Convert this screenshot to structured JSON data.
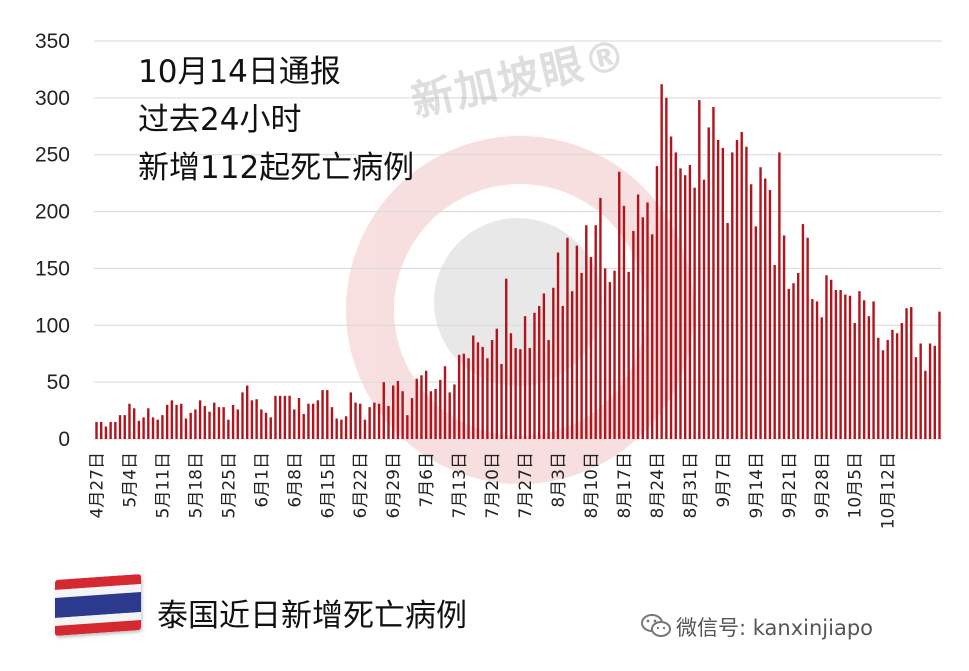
{
  "annotation": {
    "line1": "10月14日通报",
    "line2": "过去24小时",
    "line3": "新增112起死亡病例"
  },
  "legend": {
    "label": "泰国近日新增死亡病例",
    "icon": "thailand-flag-icon"
  },
  "watermark": {
    "text": "新加坡眼®",
    "icon": "logo-watermark"
  },
  "credit": {
    "text": "微信号: kanxinjiapo",
    "icon": "wechat-icon"
  },
  "colors": {
    "bar": "#b5131b",
    "grid": "#d9d9d9",
    "watermark": "#e8a0a4"
  },
  "chart_data": {
    "type": "bar",
    "ylim": [
      0,
      350
    ],
    "yticks": [
      0,
      50,
      100,
      150,
      200,
      250,
      300,
      350
    ],
    "grid": true,
    "x_start": "4月27日",
    "x_end": "10月14日",
    "xtick_labels": [
      "4月27日",
      "5月4日",
      "5月11日",
      "5月18日",
      "5月25日",
      "6月1日",
      "6月8日",
      "6月15日",
      "6月22日",
      "6月29日",
      "7月6日",
      "7月13日",
      "7月20日",
      "7月27日",
      "8月3日",
      "8月10日",
      "8月17日",
      "8月24日",
      "8月31日",
      "9月7日",
      "9月14日",
      "9月21日",
      "9月28日",
      "10月5日",
      "10月12日"
    ],
    "values": [
      15,
      15,
      11,
      15,
      15,
      21,
      21,
      31,
      27,
      16,
      19,
      27,
      19,
      17,
      21,
      30,
      34,
      30,
      31,
      18,
      23,
      26,
      34,
      29,
      24,
      32,
      28,
      28,
      17,
      30,
      26,
      41,
      47,
      34,
      35,
      26,
      23,
      19,
      38,
      38,
      38,
      38,
      26,
      36,
      22,
      31,
      31,
      34,
      43,
      43,
      28,
      18,
      17,
      20,
      41,
      32,
      31,
      17,
      28,
      32,
      31,
      50,
      29,
      47,
      51,
      42,
      21,
      36,
      53,
      56,
      60,
      42,
      44,
      52,
      64,
      41,
      48,
      74,
      75,
      71,
      91,
      85,
      81,
      71,
      87,
      97,
      66,
      141,
      93,
      80,
      79,
      108,
      80,
      111,
      117,
      128,
      87,
      133,
      164,
      117,
      177,
      130,
      170,
      146,
      188,
      160,
      188,
      212,
      150,
      138,
      148,
      235,
      205,
      147,
      183,
      215,
      195,
      208,
      180,
      240,
      312,
      300,
      266,
      252,
      238,
      232,
      241,
      221,
      298,
      228,
      274,
      292,
      263,
      256,
      190,
      252,
      263,
      270,
      257,
      224,
      187,
      239,
      229,
      219,
      153,
      252,
      179,
      132,
      137,
      146,
      189,
      177,
      123,
      121,
      107,
      144,
      140,
      131,
      131,
      127,
      126,
      102,
      130,
      122,
      108,
      121,
      89,
      78,
      87,
      96,
      93,
      102,
      115,
      116,
      72,
      84,
      60,
      84,
      82,
      112
    ]
  }
}
